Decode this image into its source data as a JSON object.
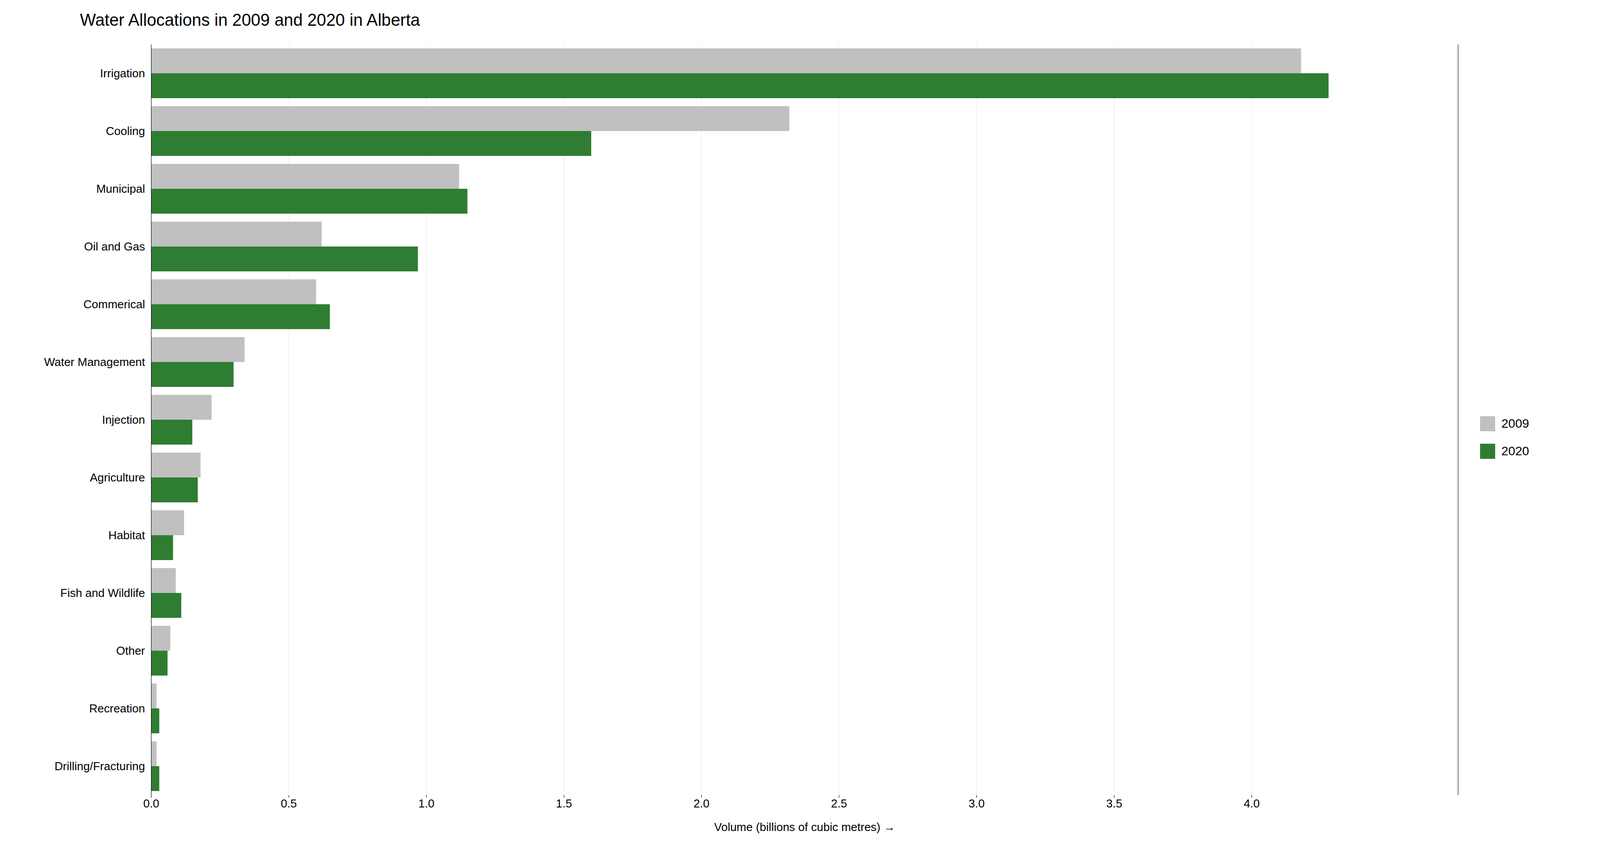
{
  "chart_data": {
    "type": "bar",
    "orientation": "horizontal",
    "title": "Water Allocations in 2009 and 2020 in Alberta",
    "xlabel": "Volume (billions of cubic metres)",
    "categories": [
      "Drilling/Fracturing",
      "Recreation",
      "Other",
      "Fish and Wildlife",
      "Habitat",
      "Agriculture",
      "Injection",
      "Water Management",
      "Commerical",
      "Oil and Gas",
      "Municipal",
      "Cooling",
      "Irrigation"
    ],
    "series": [
      {
        "name": "2009",
        "color": "#c0c0c0",
        "values": [
          0.02,
          0.02,
          0.07,
          0.09,
          0.12,
          0.18,
          0.22,
          0.34,
          0.6,
          0.62,
          1.12,
          2.32,
          4.18
        ]
      },
      {
        "name": "2020",
        "color": "#2e7d32",
        "values": [
          0.03,
          0.03,
          0.06,
          0.11,
          0.08,
          0.17,
          0.15,
          0.3,
          0.65,
          0.97,
          1.15,
          1.6,
          4.28
        ]
      }
    ],
    "xlim": [
      0,
      4.75
    ],
    "xticks": [
      {
        "value": 0.0,
        "label": "0.0"
      },
      0.5,
      {
        "value": 1.0,
        "label": "1.0"
      },
      1.5,
      {
        "value": 2.0,
        "label": "2.0"
      },
      2.5,
      {
        "value": 3.0,
        "label": "3.0"
      },
      3.5,
      {
        "value": 4.0,
        "label": "4.0"
      }
    ],
    "grid": true,
    "legend": "right"
  }
}
